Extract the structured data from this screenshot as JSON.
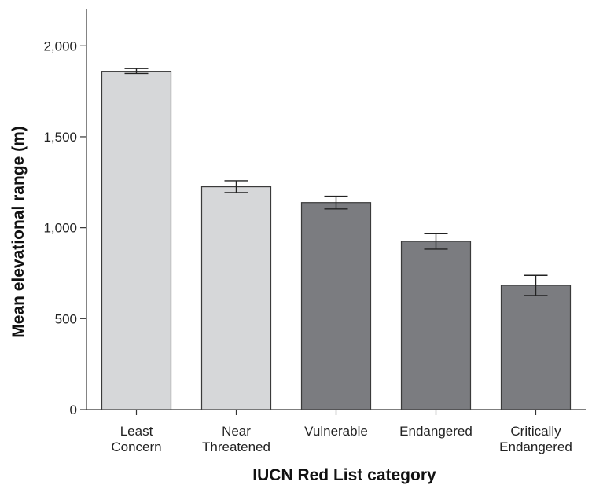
{
  "chart_data": {
    "type": "bar",
    "title": "",
    "xlabel": "IUCN Red List category",
    "ylabel": "Mean elevational range (m)",
    "ylim": [
      0,
      2200
    ],
    "yticks": [
      0,
      500,
      1000,
      1500,
      2000
    ],
    "ytick_labels": [
      "0",
      "500",
      "1,000",
      "1,500",
      "2,000"
    ],
    "grid": false,
    "legend": "none",
    "categories": [
      [
        "Least",
        "Concern"
      ],
      [
        "Near",
        "Threatened"
      ],
      [
        "Vulnerable"
      ],
      [
        "Endangered"
      ],
      [
        "Critically",
        "Endangered"
      ]
    ],
    "values": [
      1860,
      1225,
      1138,
      925,
      683
    ],
    "error_low": [
      1848,
      1193,
      1103,
      882,
      627
    ],
    "error_high": [
      1875,
      1258,
      1173,
      967,
      738
    ],
    "colors": [
      "#d6d7d9",
      "#d6d7d9",
      "#7b7c80",
      "#7b7c80",
      "#7b7c80"
    ]
  }
}
